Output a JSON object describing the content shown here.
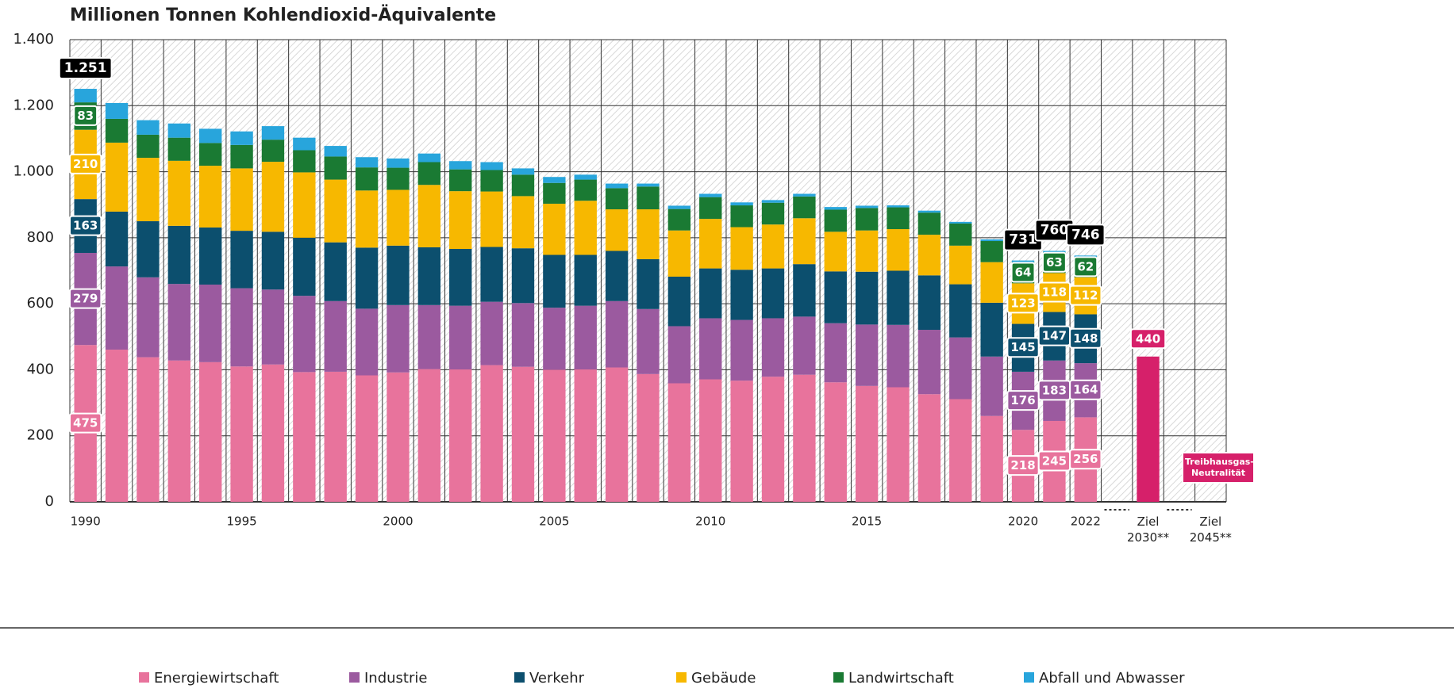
{
  "chart_data": {
    "type": "stacked_bar",
    "title": "Millionen Tonnen Kohlendioxid-Äquivalente",
    "categories": [
      "1990",
      null,
      null,
      null,
      null,
      "1995",
      null,
      null,
      null,
      null,
      "2000",
      null,
      null,
      null,
      null,
      "2005",
      null,
      null,
      null,
      null,
      "2010",
      null,
      null,
      null,
      null,
      "2015",
      null,
      null,
      null,
      null,
      "2020",
      null,
      "2022",
      null,
      "Ziel 2030**",
      null,
      "Ziel 2045**"
    ],
    "ylim": [
      0,
      1400
    ],
    "yticks": [
      0,
      200,
      400,
      600,
      800,
      {
        "value": 1000,
        "label": "1.000"
      },
      {
        "value": 1200,
        "label": "1.200"
      },
      {
        "value": 1400,
        "label": "1.400"
      }
    ],
    "grid": true,
    "series": [
      {
        "name": "Energiewirtschaft",
        "color": "#e8739c",
        "labeled": [
          0,
          30,
          31,
          32
        ],
        "values": [
          475,
          461,
          438,
          428,
          423,
          410,
          416,
          393,
          394,
          383,
          392,
          402,
          401,
          414,
          409,
          400,
          401,
          407,
          387,
          359,
          371,
          367,
          379,
          385,
          362,
          351,
          347,
          326,
          311,
          260,
          218,
          245,
          256,
          null,
          null,
          null,
          null
        ]
      },
      {
        "name": "Industrie",
        "color": "#9b5a9f",
        "labeled": [
          0,
          30,
          31,
          32
        ],
        "values": [
          279,
          252,
          242,
          232,
          235,
          237,
          227,
          231,
          214,
          202,
          204,
          194,
          193,
          192,
          193,
          188,
          193,
          201,
          197,
          173,
          185,
          184,
          177,
          176,
          179,
          186,
          189,
          195,
          187,
          180,
          176,
          183,
          164,
          null,
          null,
          null,
          null
        ]
      },
      {
        "name": "Verkehr",
        "color": "#0c4f6e",
        "labeled": [
          0,
          30,
          31,
          32
        ],
        "values": [
          163,
          166,
          170,
          176,
          173,
          174,
          175,
          176,
          178,
          185,
          180,
          175,
          172,
          166,
          166,
          160,
          154,
          152,
          151,
          150,
          151,
          152,
          151,
          159,
          157,
          160,
          164,
          165,
          161,
          163,
          145,
          147,
          148,
          null,
          null,
          null,
          null
        ]
      },
      {
        "name": "Gebäude",
        "color": "#f7b800",
        "labeled": [
          0,
          30,
          31,
          32
        ],
        "values": [
          210,
          209,
          192,
          197,
          187,
          189,
          212,
          198,
          190,
          173,
          169,
          189,
          175,
          168,
          158,
          155,
          164,
          126,
          151,
          140,
          150,
          129,
          133,
          139,
          120,
          125,
          126,
          123,
          117,
          123,
          123,
          118,
          112,
          null,
          null,
          null,
          null
        ]
      },
      {
        "name": "Landwirtschaft",
        "color": "#1a7a33",
        "labeled": [
          0,
          30,
          31,
          32
        ],
        "values": [
          83,
          72,
          70,
          70,
          69,
          71,
          67,
          67,
          70,
          70,
          67,
          69,
          66,
          65,
          65,
          63,
          64,
          64,
          69,
          65,
          66,
          66,
          66,
          66,
          67,
          68,
          66,
          67,
          67,
          64,
          64,
          63,
          62,
          null,
          null,
          null,
          null
        ]
      },
      {
        "name": "Abfall und Abwasser",
        "color": "#28a5dc",
        "labeled": [],
        "values": [
          41,
          48,
          44,
          43,
          43,
          41,
          41,
          38,
          32,
          31,
          28,
          26,
          25,
          24,
          19,
          18,
          15,
          14,
          9,
          10,
          10,
          9,
          8,
          8,
          8,
          7,
          6,
          6,
          5,
          5,
          5,
          4,
          4,
          null,
          null,
          null,
          null
        ]
      }
    ],
    "totals": {
      "values": [
        1251,
        null,
        null,
        null,
        null,
        null,
        null,
        null,
        null,
        null,
        null,
        null,
        null,
        null,
        null,
        null,
        null,
        null,
        null,
        null,
        null,
        null,
        null,
        null,
        null,
        null,
        null,
        null,
        null,
        null,
        731,
        760,
        746,
        null,
        null,
        null,
        null
      ],
      "value_labels": [
        "1.251",
        null,
        null,
        null,
        null,
        null,
        null,
        null,
        null,
        null,
        null,
        null,
        null,
        null,
        null,
        null,
        null,
        null,
        null,
        null,
        null,
        null,
        null,
        null,
        null,
        null,
        null,
        null,
        null,
        null,
        "731",
        "760",
        "746",
        null,
        null,
        null,
        null
      ]
    },
    "targets": {
      "color": "#d6206a",
      "values": [
        null,
        null,
        null,
        null,
        null,
        null,
        null,
        null,
        null,
        null,
        null,
        null,
        null,
        null,
        null,
        null,
        null,
        null,
        null,
        null,
        null,
        null,
        null,
        null,
        null,
        null,
        null,
        null,
        null,
        null,
        null,
        null,
        null,
        null,
        440,
        null,
        null
      ]
    },
    "annotation": "Treibhausgas-Neutralität"
  }
}
